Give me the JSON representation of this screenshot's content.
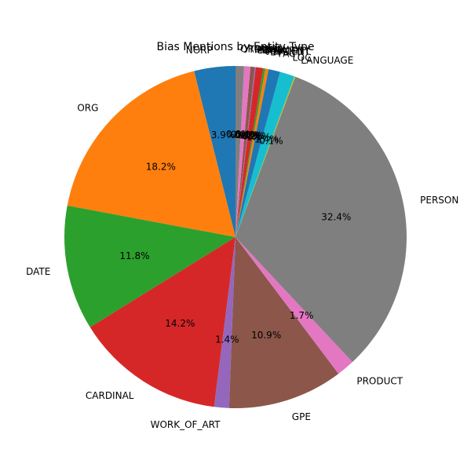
{
  "chart_data": {
    "type": "pie",
    "title": "Bias Mentions by Entity Type",
    "start_angle_deg": 90,
    "direction": "counterclockwise",
    "label_format": "one-decimal-percent",
    "slices": [
      {
        "label": "NORP",
        "value": 3.9,
        "color": "#1f77b4"
      },
      {
        "label": "ORG",
        "value": 18.2,
        "color": "#ff7f0e"
      },
      {
        "label": "DATE",
        "value": 11.8,
        "color": "#2ca02c"
      },
      {
        "label": "CARDINAL",
        "value": 14.2,
        "color": "#d62728"
      },
      {
        "label": "WORK_OF_ART",
        "value": 1.4,
        "color": "#9467bd"
      },
      {
        "label": "GPE",
        "value": 10.9,
        "color": "#8c564b"
      },
      {
        "label": "PRODUCT",
        "value": 1.7,
        "color": "#e377c2"
      },
      {
        "label": "PERSON",
        "value": 32.4,
        "color": "#7f7f7f"
      },
      {
        "label": "LANGUAGE",
        "value": 0.1,
        "color": "#bcbd22"
      },
      {
        "label": "LOC",
        "value": 1.4,
        "color": "#17becf"
      },
      {
        "label": "FAC",
        "value": 1.1,
        "color": "#1f77b4"
      },
      {
        "label": "EVENT",
        "value": 0.3,
        "color": "#ff7f0e"
      },
      {
        "label": "PERCENT",
        "value": 0.2,
        "color": "#2ca02c"
      },
      {
        "label": "QUANTITY",
        "value": 0.7,
        "color": "#d62728"
      },
      {
        "label": "LAW",
        "value": 0.1,
        "color": "#9467bd"
      },
      {
        "label": "MONEY",
        "value": 0.4,
        "color": "#8c564b"
      },
      {
        "label": "TIME",
        "value": 0.6,
        "color": "#e377c2"
      },
      {
        "label": "ORDINAL",
        "value": 0.8,
        "color": "#7f7f7f"
      }
    ]
  }
}
